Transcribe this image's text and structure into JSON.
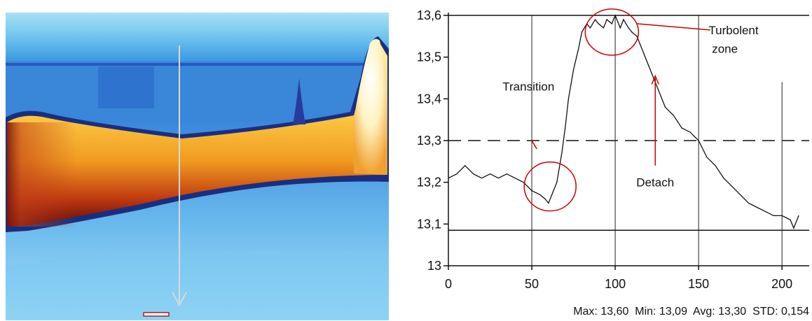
{
  "chart_data": {
    "type": "line",
    "xlim": [
      0,
      210
    ],
    "ylim": [
      13.0,
      13.6
    ],
    "x_ticks": [
      "0",
      "50",
      "100",
      "150",
      "200"
    ],
    "y_ticks": [
      "13",
      "13,1",
      "13,2",
      "13,3",
      "13,4",
      "13,5",
      "13,6"
    ],
    "series": [
      {
        "x": [
          0,
          5,
          10,
          15,
          20,
          25,
          30,
          35,
          40,
          45,
          50,
          55,
          58,
          60,
          62,
          65,
          68,
          70,
          72,
          75,
          78,
          80,
          83,
          85,
          88,
          90,
          93,
          95,
          98,
          100,
          103,
          105,
          108,
          110,
          113,
          115,
          120,
          125,
          130,
          135,
          140,
          145,
          150,
          155,
          160,
          165,
          170,
          175,
          180,
          185,
          190,
          195,
          200,
          205,
          207,
          210
        ],
        "y": [
          13.21,
          13.22,
          13.24,
          13.22,
          13.21,
          13.22,
          13.21,
          13.22,
          13.21,
          13.2,
          13.18,
          13.17,
          13.16,
          13.15,
          13.17,
          13.2,
          13.27,
          13.33,
          13.4,
          13.47,
          13.52,
          13.56,
          13.58,
          13.57,
          13.59,
          13.58,
          13.57,
          13.59,
          13.58,
          13.6,
          13.57,
          13.59,
          13.57,
          13.56,
          13.55,
          13.53,
          13.48,
          13.43,
          13.38,
          13.36,
          13.33,
          13.32,
          13.3,
          13.26,
          13.24,
          13.21,
          13.19,
          13.17,
          13.15,
          13.14,
          13.13,
          13.12,
          13.12,
          13.11,
          13.09,
          13.12
        ]
      }
    ],
    "reference_lines": {
      "upper": 13.6,
      "dashed": 13.3,
      "lower": 13.085
    },
    "vertical_gridlines_at": [
      50,
      100,
      150,
      200
    ],
    "annotations": {
      "transition": "Transition",
      "turbolent_line1": "Turbolent",
      "turbolent_line2": "zone",
      "detach": "Detach"
    },
    "stats_text": "Max: 13,60  Min: 13,09  Avg: 13,30  STD: 0,154",
    "annotation_color": "#cc0000"
  }
}
